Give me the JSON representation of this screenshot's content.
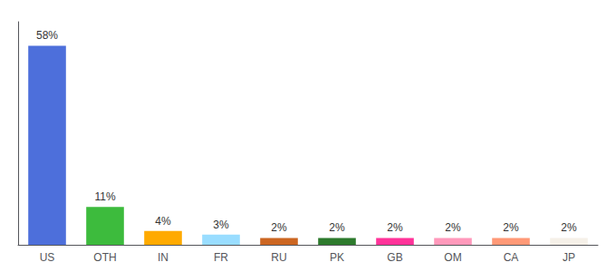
{
  "chart_data": {
    "type": "bar",
    "categories": [
      "US",
      "OTH",
      "IN",
      "FR",
      "RU",
      "PK",
      "GB",
      "OM",
      "CA",
      "JP"
    ],
    "values": [
      58,
      11,
      4,
      3,
      2,
      2,
      2,
      2,
      2,
      2
    ],
    "value_labels": [
      "58%",
      "11%",
      "4%",
      "3%",
      "2%",
      "2%",
      "2%",
      "2%",
      "2%",
      "2%"
    ],
    "colors": [
      "#4d6fdb",
      "#3dbb3d",
      "#ffaa00",
      "#99ddff",
      "#cc6622",
      "#2d7a2d",
      "#ff3399",
      "#ff99bb",
      "#ff9977",
      "#f5f0e8"
    ],
    "ylim": [
      0,
      65
    ],
    "data_labels": true,
    "tick_labels": "x",
    "grid": false
  }
}
